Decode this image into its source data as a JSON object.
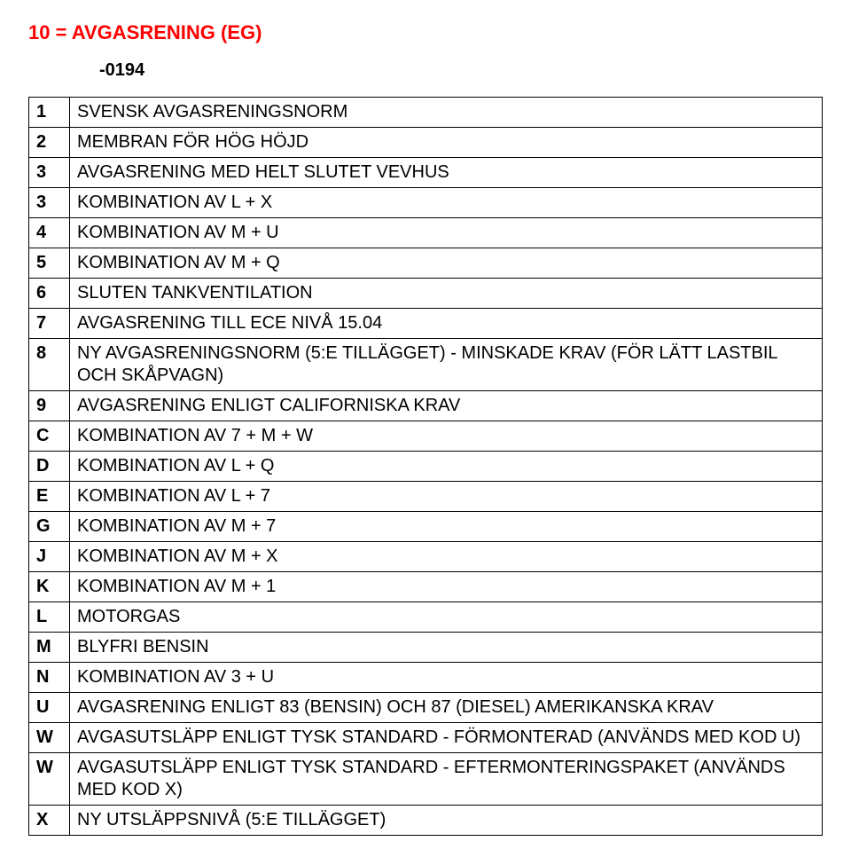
{
  "title": {
    "text": "10 = AVGASRENING (EG)",
    "color": "#ff0000"
  },
  "subcode": "-0194",
  "rows": [
    {
      "code": "1",
      "desc": "SVENSK AVGASRENINGSNORM"
    },
    {
      "code": "2",
      "desc": "MEMBRAN FÖR HÖG HÖJD"
    },
    {
      "code": "3",
      "desc": "AVGASRENING MED HELT SLUTET VEVHUS"
    },
    {
      "code": "3",
      "desc": "KOMBINATION AV L + X"
    },
    {
      "code": "4",
      "desc": "KOMBINATION AV M + U"
    },
    {
      "code": "5",
      "desc": "KOMBINATION AV M + Q"
    },
    {
      "code": "6",
      "desc": "SLUTEN TANKVENTILATION"
    },
    {
      "code": "7",
      "desc": "AVGASRENING TILL ECE NIVÅ 15.04"
    },
    {
      "code": "8",
      "desc": "NY AVGASRENINGSNORM (5:E TILLÄGGET) - MINSKADE KRAV (FÖR LÄTT LASTBIL OCH SKÅPVAGN)"
    },
    {
      "code": "9",
      "desc": "AVGASRENING ENLIGT CALIFORNISKA KRAV"
    },
    {
      "code": "C",
      "desc": "KOMBINATION AV 7 + M + W"
    },
    {
      "code": "D",
      "desc": "KOMBINATION AV L + Q"
    },
    {
      "code": "E",
      "desc": "KOMBINATION AV L + 7"
    },
    {
      "code": "G",
      "desc": "KOMBINATION AV M + 7"
    },
    {
      "code": "J",
      "desc": "KOMBINATION AV M + X"
    },
    {
      "code": "K",
      "desc": "KOMBINATION AV M + 1"
    },
    {
      "code": "L",
      "desc": "MOTORGAS"
    },
    {
      "code": "M",
      "desc": "BLYFRI BENSIN"
    },
    {
      "code": "N",
      "desc": "KOMBINATION AV 3 + U"
    },
    {
      "code": "U",
      "desc": "AVGASRENING ENLIGT 83 (BENSIN) OCH 87 (DIESEL) AMERIKANSKA KRAV"
    },
    {
      "code": "W",
      "desc": "AVGASUTSLÄPP ENLIGT TYSK STANDARD - FÖRMONTERAD (ANVÄNDS MED KOD U)"
    },
    {
      "code": "W",
      "desc": "AVGASUTSLÄPP ENLIGT TYSK STANDARD - EFTERMONTERINGSPAKET (ANVÄNDS MED KOD X)"
    },
    {
      "code": "X",
      "desc": "NY UTSLÄPPSNIVÅ (5:E TILLÄGGET)"
    }
  ]
}
